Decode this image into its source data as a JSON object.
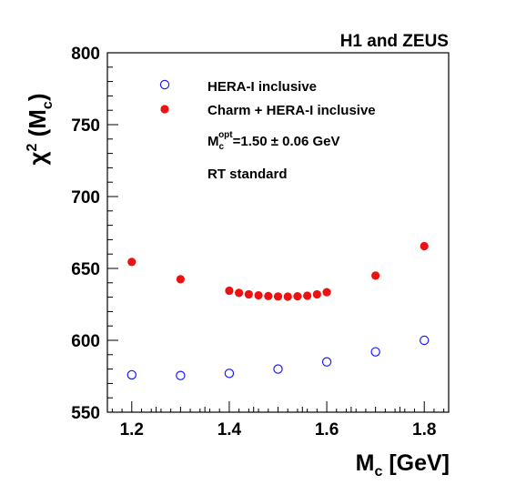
{
  "chart_data": {
    "type": "scatter",
    "title": "H1 and ZEUS",
    "xlabel": {
      "main": "M",
      "sub": "c",
      "rest": " [GeV]"
    },
    "ylabel": {
      "chi": "χ",
      "sup": "2",
      "open": " (M",
      "sub": "c",
      "close": ")"
    },
    "xlim": [
      1.15,
      1.85
    ],
    "ylim": [
      550,
      800
    ],
    "xticks": [
      {
        "v": 1.2,
        "label": "1.2"
      },
      {
        "v": 1.4,
        "label": "1.4"
      },
      {
        "v": 1.6,
        "label": "1.6"
      },
      {
        "v": 1.8,
        "label": "1.8"
      }
    ],
    "yticks": [
      {
        "v": 550,
        "label": "550"
      },
      {
        "v": 600,
        "label": "600"
      },
      {
        "v": 650,
        "label": "650"
      },
      {
        "v": 700,
        "label": "700"
      },
      {
        "v": 750,
        "label": "750"
      },
      {
        "v": 800,
        "label": "800"
      }
    ],
    "grid": false,
    "legend_placement": "top-left",
    "series": [
      {
        "name": "HERA-I inclusive",
        "marker": "open-circle",
        "color": "#1a1aff",
        "x": [
          1.2,
          1.3,
          1.4,
          1.5,
          1.6,
          1.7,
          1.8
        ],
        "y": [
          576,
          575.5,
          577,
          580,
          585,
          592,
          600
        ]
      },
      {
        "name": "Charm + HERA-I inclusive",
        "marker": "filled-circle",
        "color": "#ee1111",
        "x": [
          1.2,
          1.3,
          1.4,
          1.42,
          1.44,
          1.46,
          1.48,
          1.5,
          1.52,
          1.54,
          1.56,
          1.58,
          1.6,
          1.7,
          1.8
        ],
        "y": [
          654.5,
          642.5,
          634.5,
          633,
          632,
          631.3,
          630.8,
          630.5,
          630.4,
          630.6,
          631,
          632,
          633.5,
          645,
          665.5
        ]
      }
    ],
    "annotations": {
      "mopt": {
        "m": "M",
        "sub": "c",
        "sup": "opt",
        "text": "=1.50 ± 0.06 GeV"
      },
      "scheme": "RT standard"
    }
  }
}
